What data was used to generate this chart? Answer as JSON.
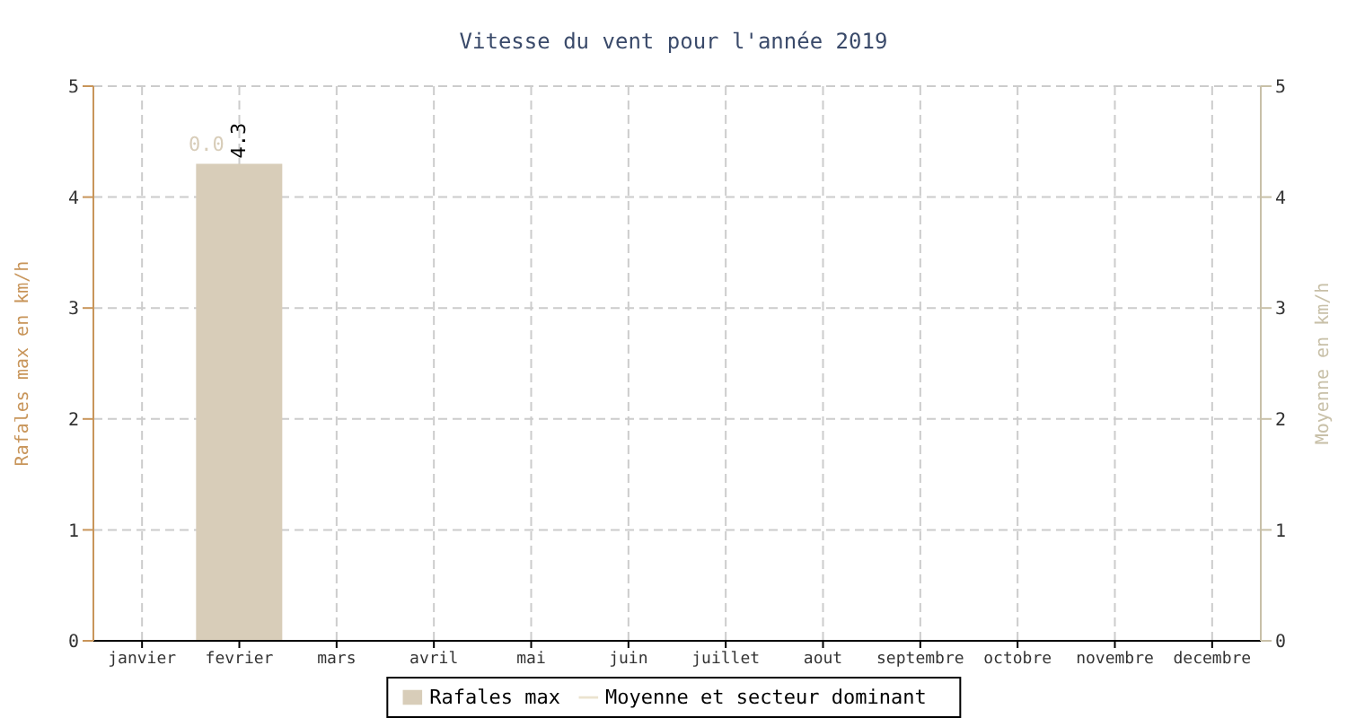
{
  "chart_data": {
    "type": "bar",
    "title": "Vitesse du vent pour l'année 2019",
    "ylabel": "Rafales max en km/h",
    "y2label": "Moyenne en km/h",
    "categories": [
      "janvier",
      "fevrier",
      "mars",
      "avril",
      "mai",
      "juin",
      "juillet",
      "aout",
      "septembre",
      "octobre",
      "novembre",
      "decembre"
    ],
    "series": [
      {
        "name": "Rafales max",
        "color": "#d8cdb9",
        "values": [
          null,
          4.3,
          null,
          null,
          null,
          null,
          null,
          null,
          null,
          null,
          null,
          null
        ],
        "value_labels": [
          null,
          "4.3",
          null,
          null,
          null,
          null,
          null,
          null,
          null,
          null,
          null,
          null
        ]
      },
      {
        "name": "Moyenne et secteur dominant",
        "type": "line",
        "color": "#ebe3cf",
        "values": [
          null,
          null,
          null,
          null,
          null,
          null,
          null,
          null,
          null,
          null,
          null,
          null
        ]
      }
    ],
    "annotations": [
      "0.0"
    ],
    "ylim": [
      0,
      5
    ],
    "yticks": [
      0,
      1,
      2,
      3,
      4,
      5
    ],
    "y2lim": [
      0,
      5
    ],
    "y2ticks": [
      0,
      1,
      2,
      3,
      4,
      5
    ],
    "grid": true,
    "legend": "bottom"
  }
}
